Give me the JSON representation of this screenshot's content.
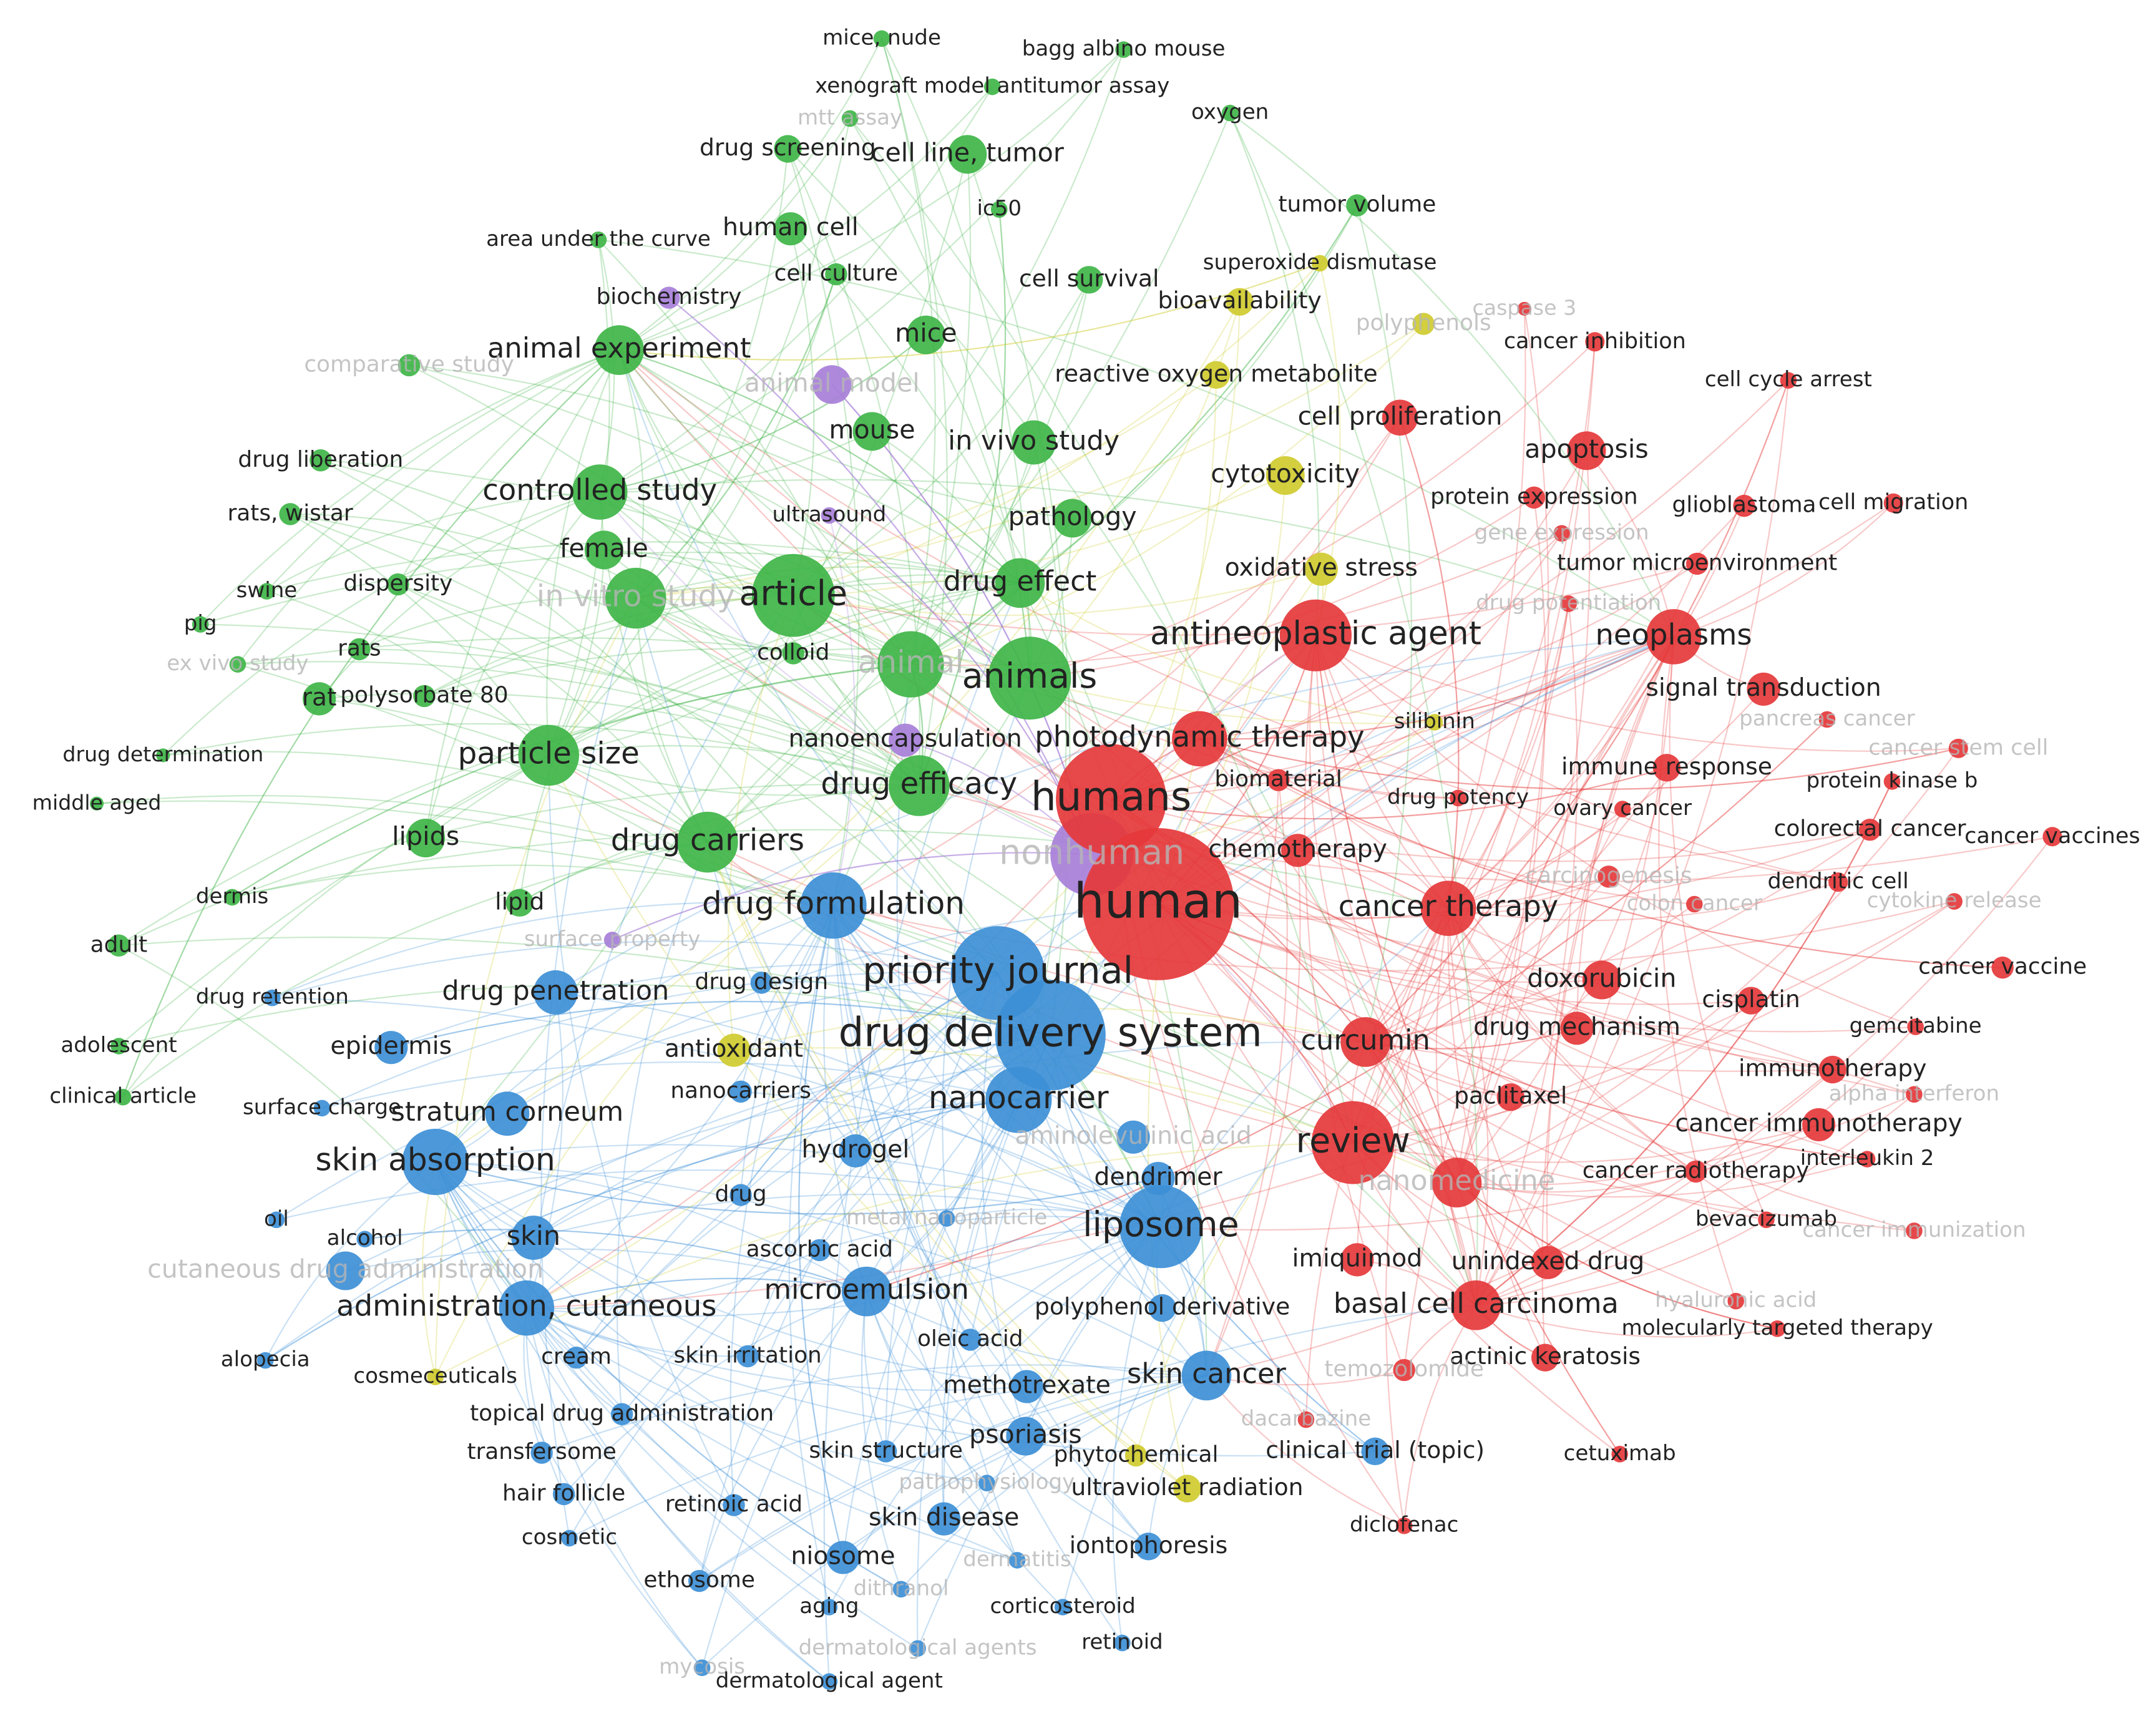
{
  "clusters": [
    {
      "color": "#e5383b",
      "nodes": [
        "caspase 3",
        "cancer inhibition",
        "cell cycle arrest",
        "cell proliferation",
        "apoptosis",
        "protein expression",
        "glioblastoma",
        "cell migration",
        "gene expression",
        "tumor microenvironment",
        "drug potentiation",
        "antineoplastic agent",
        "neoplasms",
        "signal transduction",
        "pancreas cancer",
        "cancer stem cell",
        "immune response",
        "protein kinase b",
        "drug potency",
        "ovary cancer",
        "photodynamic therapy",
        "biomaterial",
        "humans",
        "colorectal cancer",
        "cancer vaccines",
        "chemotherapy",
        "carcinogenesis",
        "dendritic cell",
        "colon cancer",
        "cytokine release",
        "human",
        "cancer therapy",
        "cancer vaccine",
        "doxorubicin",
        "cisplatin",
        "drug mechanism",
        "gemcitabine",
        "curcumin",
        "immunotherapy",
        "paclitaxel",
        "alpha interferon",
        "cancer immunotherapy",
        "review",
        "interleukin 2",
        "cancer radiotherapy",
        "nanomedicine",
        "bevacizumab",
        "cancer immunization",
        "imiquimod",
        "unindexed drug",
        "basal cell carcinoma",
        "hyaluronic acid",
        "molecularly targeted therapy",
        "actinic keratosis",
        "temozolomide",
        "dacarbazine",
        "cetuximab",
        "diclofenac"
      ]
    },
    {
      "color": "#3fb548",
      "nodes": [
        "mice, nude",
        "bagg albino mouse",
        "xenograft model antitumor assay",
        "oxygen",
        "mtt assay",
        "drug screening",
        "cell line, tumor",
        "human cell",
        "area under the curve",
        "ic50",
        "tumor volume",
        "cell culture",
        "cell survival",
        "mice",
        "animal experiment",
        "comparative study",
        "mouse",
        "in vivo study",
        "drug liberation",
        "controlled study",
        "rats, wistar",
        "pathology",
        "female",
        "dispersity",
        "swine",
        "in vitro study",
        "article",
        "drug effect",
        "pig",
        "rats",
        "colloid",
        "ex vivo study",
        "animal",
        "animals",
        "rat",
        "polysorbate 80",
        "drug determination",
        "particle size",
        "drug efficacy",
        "middle aged",
        "lipids",
        "drug carriers",
        "dermis",
        "lipid",
        "adult",
        "adolescent",
        "clinical article"
      ]
    },
    {
      "color": "#3d8fd6",
      "nodes": [
        "drug formulation",
        "priority journal",
        "drug design",
        "drug penetration",
        "drug retention",
        "drug delivery system",
        "epidermis",
        "nanocarriers",
        "nanocarrier",
        "surface charge",
        "stratum corneum",
        "aminolevulinic acid",
        "hydrogel",
        "skin absorption",
        "dendrimer",
        "drug",
        "metal nanoparticle",
        "liposome",
        "oil",
        "alcohol",
        "skin",
        "ascorbic acid",
        "cutaneous drug administration",
        "microemulsion",
        "administration, cutaneous",
        "polyphenol derivative",
        "oleic acid",
        "alopecia",
        "cream",
        "skin irritation",
        "skin cancer",
        "methotrexate",
        "topical drug administration",
        "psoriasis",
        "transfersome",
        "skin structure",
        "clinical trial (topic)",
        "pathophysiology",
        "hair follicle",
        "retinoic acid",
        "skin disease",
        "cosmetic",
        "iontophoresis",
        "niosome",
        "dermatitis",
        "ethosome",
        "dithranol",
        "aging",
        "corticosteroid",
        "retinoid",
        "dermatological agents",
        "mycosis",
        "dermatological agent"
      ]
    },
    {
      "color": "#cfcb2f",
      "nodes": [
        "superoxide dismutase",
        "bioavailability",
        "polyphenols",
        "reactive oxygen metabolite",
        "cytotoxicity",
        "oxidative stress",
        "silibinin",
        "antioxidant",
        "cosmeceuticals",
        "phytochemical",
        "ultraviolet radiation"
      ]
    },
    {
      "color": "#a77fd8",
      "nodes": [
        "biochemistry",
        "animal model",
        "ultrasound",
        "nanoencapsulation",
        "nonhuman",
        "surface property"
      ]
    }
  ]
}
